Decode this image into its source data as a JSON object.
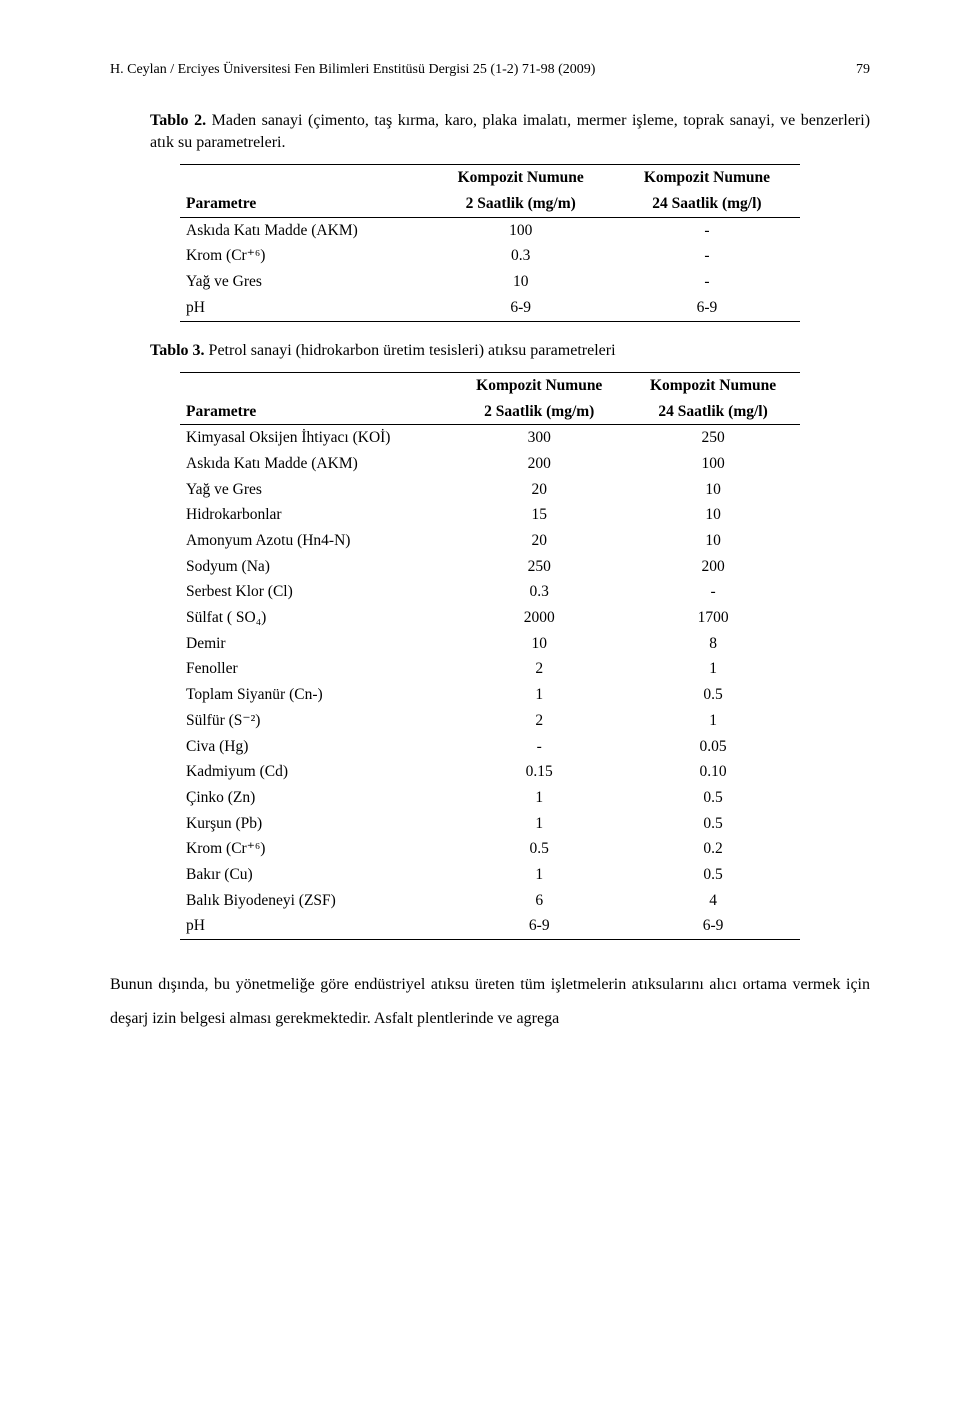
{
  "header": {
    "text": "H. Ceylan / Erciyes Üniversitesi Fen Bilimleri Enstitüsü Dergisi 25 (1-2) 71-98 (2009)",
    "page": "79"
  },
  "table2": {
    "caption_label": "Tablo 2.",
    "caption_text": "Maden sanayi (çimento, taş kırma, karo, plaka imalatı, mermer işleme, toprak sanayi, ve benzerleri) atık su parametreleri.",
    "head": {
      "param": "Parametre",
      "c1a": "Kompozit Numune",
      "c1b": "2 Saatlik (mg/m)",
      "c2a": "Kompozit Numune",
      "c2b": "24 Saatlik (mg/l)"
    },
    "rows": [
      {
        "p": "Askıda Katı Madde (AKM)",
        "v1": "100",
        "v2": "-"
      },
      {
        "p": "Krom (Cr⁺⁶)",
        "v1": "0.3",
        "v2": "-"
      },
      {
        "p": "Yağ ve Gres",
        "v1": "10",
        "v2": "-"
      },
      {
        "p": "pH",
        "v1": "6-9",
        "v2": "6-9"
      }
    ]
  },
  "table3": {
    "caption_label": "Tablo 3.",
    "caption_text": "Petrol sanayi (hidrokarbon üretim tesisleri) atıksu parametreleri",
    "head": {
      "param": "Parametre",
      "c1a": "Kompozit Numune",
      "c1b": "2 Saatlik (mg/m)",
      "c2a": "Kompozit Numune",
      "c2b": "24 Saatlik (mg/l)"
    },
    "rows": [
      {
        "p": "Kimyasal Oksijen İhtiyacı (KOİ)",
        "v1": "300",
        "v2": "250"
      },
      {
        "p": "Askıda Katı Madde (AKM)",
        "v1": "200",
        "v2": "100"
      },
      {
        "p": "Yağ ve Gres",
        "v1": "20",
        "v2": "10"
      },
      {
        "p": "Hidrokarbonlar",
        "v1": "15",
        "v2": "10"
      },
      {
        "p": "Amonyum Azotu (Hn4-N)",
        "v1": "20",
        "v2": "10"
      },
      {
        "p": "Sodyum (Na)",
        "v1": "250",
        "v2": "200"
      },
      {
        "p": "Serbest Klor (Cl)",
        "v1": "0.3",
        "v2": "-"
      },
      {
        "p": "Sülfat ( SO₄)",
        "v1": "2000",
        "v2": "1700"
      },
      {
        "p": "Demir",
        "v1": "10",
        "v2": "8"
      },
      {
        "p": "Fenoller",
        "v1": "2",
        "v2": "1"
      },
      {
        "p": "Toplam Siyanür (Cn-)",
        "v1": "1",
        "v2": "0.5"
      },
      {
        "p": "Sülfür (S⁻²)",
        "v1": "2",
        "v2": "1"
      },
      {
        "p": "Civa (Hg)",
        "v1": "-",
        "v2": "0.05"
      },
      {
        "p": "Kadmiyum (Cd)",
        "v1": "0.15",
        "v2": "0.10"
      },
      {
        "p": "Çinko (Zn)",
        "v1": "1",
        "v2": "0.5"
      },
      {
        "p": "Kurşun (Pb)",
        "v1": "1",
        "v2": "0.5"
      },
      {
        "p": "Krom (Cr⁺⁶)",
        "v1": "0.5",
        "v2": "0.2"
      },
      {
        "p": "Bakır (Cu)",
        "v1": "1",
        "v2": "0.5"
      },
      {
        "p": "Balık Biyodeneyi (ZSF)",
        "v1": "6",
        "v2": "4"
      },
      {
        "p": "pH",
        "v1": "6-9",
        "v2": "6-9"
      }
    ]
  },
  "body": {
    "text": "Bunun dışında, bu yönetmeliğe göre endüstriyel atıksu üreten tüm işletmelerin atıksularını alıcı ortama vermek için deşarj izin belgesi alması gerekmektedir. Asfalt plentlerinde ve agrega"
  }
}
